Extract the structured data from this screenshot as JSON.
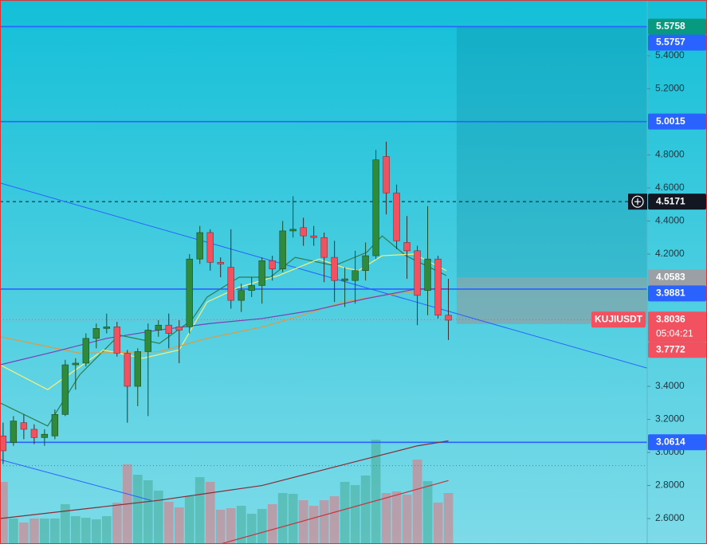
{
  "chart_data": {
    "type": "candlestick",
    "symbol": "KUJIUSDT",
    "countdown": "05:04:21",
    "xlim": [
      -0.3,
      62.2
    ],
    "ylim": [
      2.446,
      5.737
    ],
    "yticks": [
      {
        "value": 2.6,
        "label": "2.6000"
      },
      {
        "value": 2.8,
        "label": "2.8000"
      },
      {
        "value": 3.0,
        "label": "3.0000"
      },
      {
        "value": 3.2,
        "label": "3.2000"
      },
      {
        "value": 3.4,
        "label": "3.4000"
      },
      {
        "value": 4.2,
        "label": "4.2000"
      },
      {
        "value": 4.4,
        "label": "4.4000"
      },
      {
        "value": 4.6,
        "label": "4.6000"
      },
      {
        "value": 4.8,
        "label": "4.8000"
      },
      {
        "value": 5.2,
        "label": "5.2000"
      },
      {
        "value": 5.4,
        "label": "5.4000"
      }
    ],
    "candles": {
      "open": [
        3.1,
        3.06,
        3.18,
        3.14,
        3.09,
        3.1,
        3.23,
        3.53,
        3.54,
        3.69,
        3.75,
        3.76,
        3.6,
        3.4,
        3.61,
        3.74,
        3.77,
        3.76,
        3.76,
        4.17,
        4.33,
        4.15,
        4.12,
        3.92,
        3.98,
        4.01,
        4.16,
        4.11,
        4.34,
        4.36,
        4.31,
        4.3,
        4.18,
        4.04,
        4.04,
        4.1,
        4.19,
        4.79,
        4.57,
        4.27,
        4.22,
        3.98,
        4.17,
        3.83
      ],
      "high": [
        3.18,
        3.22,
        3.23,
        3.17,
        3.14,
        3.26,
        3.56,
        3.57,
        3.72,
        3.78,
        3.84,
        3.79,
        3.62,
        3.63,
        3.78,
        3.8,
        3.84,
        3.8,
        4.2,
        4.37,
        4.35,
        4.18,
        4.35,
        4.02,
        4.06,
        4.18,
        4.19,
        4.4,
        4.55,
        4.42,
        4.37,
        4.33,
        4.28,
        4.12,
        4.22,
        4.27,
        4.83,
        4.88,
        4.62,
        4.43,
        4.25,
        4.49,
        4.19,
        4.05
      ],
      "low": [
        2.93,
        3.04,
        3.08,
        3.05,
        3.04,
        3.08,
        3.22,
        3.38,
        3.52,
        3.63,
        3.72,
        3.58,
        3.18,
        3.28,
        3.22,
        3.7,
        3.63,
        3.54,
        3.72,
        4.14,
        4.1,
        4.06,
        3.87,
        3.85,
        3.94,
        3.9,
        4.04,
        4.09,
        4.3,
        4.25,
        4.25,
        4.03,
        3.91,
        3.88,
        3.9,
        4.04,
        4.17,
        4.44,
        4.23,
        4.05,
        3.77,
        3.83,
        3.81,
        3.68
      ],
      "close": [
        3.01,
        3.19,
        3.14,
        3.09,
        3.11,
        3.23,
        3.53,
        3.54,
        3.69,
        3.75,
        3.76,
        3.6,
        3.4,
        3.61,
        3.74,
        3.77,
        3.72,
        3.74,
        4.17,
        4.33,
        4.15,
        4.14,
        3.92,
        3.98,
        4.01,
        4.16,
        4.11,
        4.34,
        4.35,
        4.31,
        4.3,
        4.18,
        4.04,
        4.05,
        4.1,
        4.19,
        4.77,
        4.57,
        4.28,
        4.22,
        3.95,
        4.17,
        3.83,
        3.8
      ],
      "up_color": "#2f8a3c",
      "down_color": "#f2515f"
    },
    "volume": {
      "ylim": [
        0,
        683
      ],
      "up_color": "rgba(70,170,150,0.55)",
      "down_color": "rgba(225,120,130,0.6)",
      "values": [
        78,
        32,
        27,
        32,
        32,
        32,
        50,
        35,
        33,
        31,
        35,
        52,
        100,
        87,
        80,
        67,
        53,
        46,
        60,
        84,
        78,
        43,
        45,
        48,
        38,
        44,
        50,
        64,
        63,
        55,
        48,
        55,
        60,
        78,
        74,
        86,
        131,
        64,
        66,
        62,
        106,
        79,
        52,
        64
      ]
    },
    "overlays": [
      {
        "color": "#2e7d4f",
        "x": [
          -0.3,
          4.3,
          7.4,
          11.2,
          15.1,
          18.2,
          19.7,
          22.8,
          25.8,
          28.2,
          32,
          35.1,
          36.6,
          38.9,
          42.8
        ],
        "values": [
          3.3,
          3.16,
          3.47,
          3.71,
          3.66,
          3.8,
          3.94,
          4.06,
          4.06,
          4.18,
          4.13,
          4.21,
          4.31,
          4.19,
          4.07
        ]
      },
      {
        "color": "#f5f07a",
        "x": [
          -0.3,
          4.3,
          9.7,
          13.5,
          17,
          19.7,
          22.8,
          26.6,
          30.5,
          32.8,
          34.3,
          36.6,
          39.7,
          42.8
        ],
        "values": [
          3.53,
          3.38,
          3.62,
          3.57,
          3.62,
          3.91,
          4.0,
          4.07,
          4.17,
          4.12,
          4.1,
          4.19,
          4.2,
          4.1
        ]
      },
      {
        "color": "#e09a40",
        "x": [
          -0.3,
          7.4,
          15.1,
          19.7,
          25.1,
          28.9,
          32.8,
          36.6,
          39.7
        ],
        "values": [
          3.7,
          3.6,
          3.61,
          3.69,
          3.76,
          3.83,
          3.91,
          3.95,
          3.97
        ]
      },
      {
        "color": "#7b3fb5",
        "x": [
          -0.3,
          5,
          10,
          15,
          20,
          25,
          30,
          35,
          40,
          43
        ],
        "values": [
          3.53,
          3.61,
          3.69,
          3.74,
          3.78,
          3.81,
          3.86,
          3.93,
          3.99,
          3.99
        ]
      },
      {
        "color": "#8b2a35",
        "x": [
          -0.3,
          15,
          25,
          30,
          35,
          40,
          43
        ],
        "values": [
          2.6,
          2.71,
          2.8,
          2.88,
          2.96,
          3.04,
          3.07
        ]
      },
      {
        "color": "#c8323c",
        "x": [
          21.2,
          43
        ],
        "values": [
          2.45,
          2.83
        ]
      }
    ],
    "trendlines": [
      {
        "color": "#2962ff",
        "x": [
          -0.3,
          62.2
        ],
        "values": [
          4.63,
          3.51
        ]
      },
      {
        "color": "#2962ff",
        "x": [
          -0.3,
          14.3
        ],
        "values": [
          2.957,
          2.71
        ]
      }
    ],
    "position": {
      "x": 43.8,
      "target": 5.5758,
      "entry": 4.0583,
      "stop": 3.7772
    },
    "extra_lines": [
      {
        "value": 2.92,
        "style": "dotted",
        "color": "#6a7a86"
      }
    ],
    "tags": [
      {
        "value": 5.5758,
        "label": "5.5758",
        "color": "#089981"
      },
      {
        "value": 5.5757,
        "label": "5.5757",
        "color": "#2962ff",
        "line": "solid"
      },
      {
        "value": 5.0015,
        "label": "5.0015",
        "color": "#2962ff",
        "line": "solid"
      },
      {
        "value": 4.5171,
        "label": "4.5171",
        "color": "#131722",
        "line": "dashed"
      },
      {
        "value": 4.0583,
        "label": "4.0583",
        "color": "#9aa0a6"
      },
      {
        "value": 3.9881,
        "label": "3.9881",
        "color": "#2962ff",
        "line": "solid"
      },
      {
        "value": 3.8036,
        "label": "3.8036",
        "color": "#f2515f",
        "line": "dotted"
      },
      {
        "value": 3.7772,
        "label": "3.7772",
        "color": "#f2515f"
      },
      {
        "value": 3.0614,
        "label": "3.0614",
        "color": "#2962ff",
        "line": "solid"
      }
    ]
  }
}
